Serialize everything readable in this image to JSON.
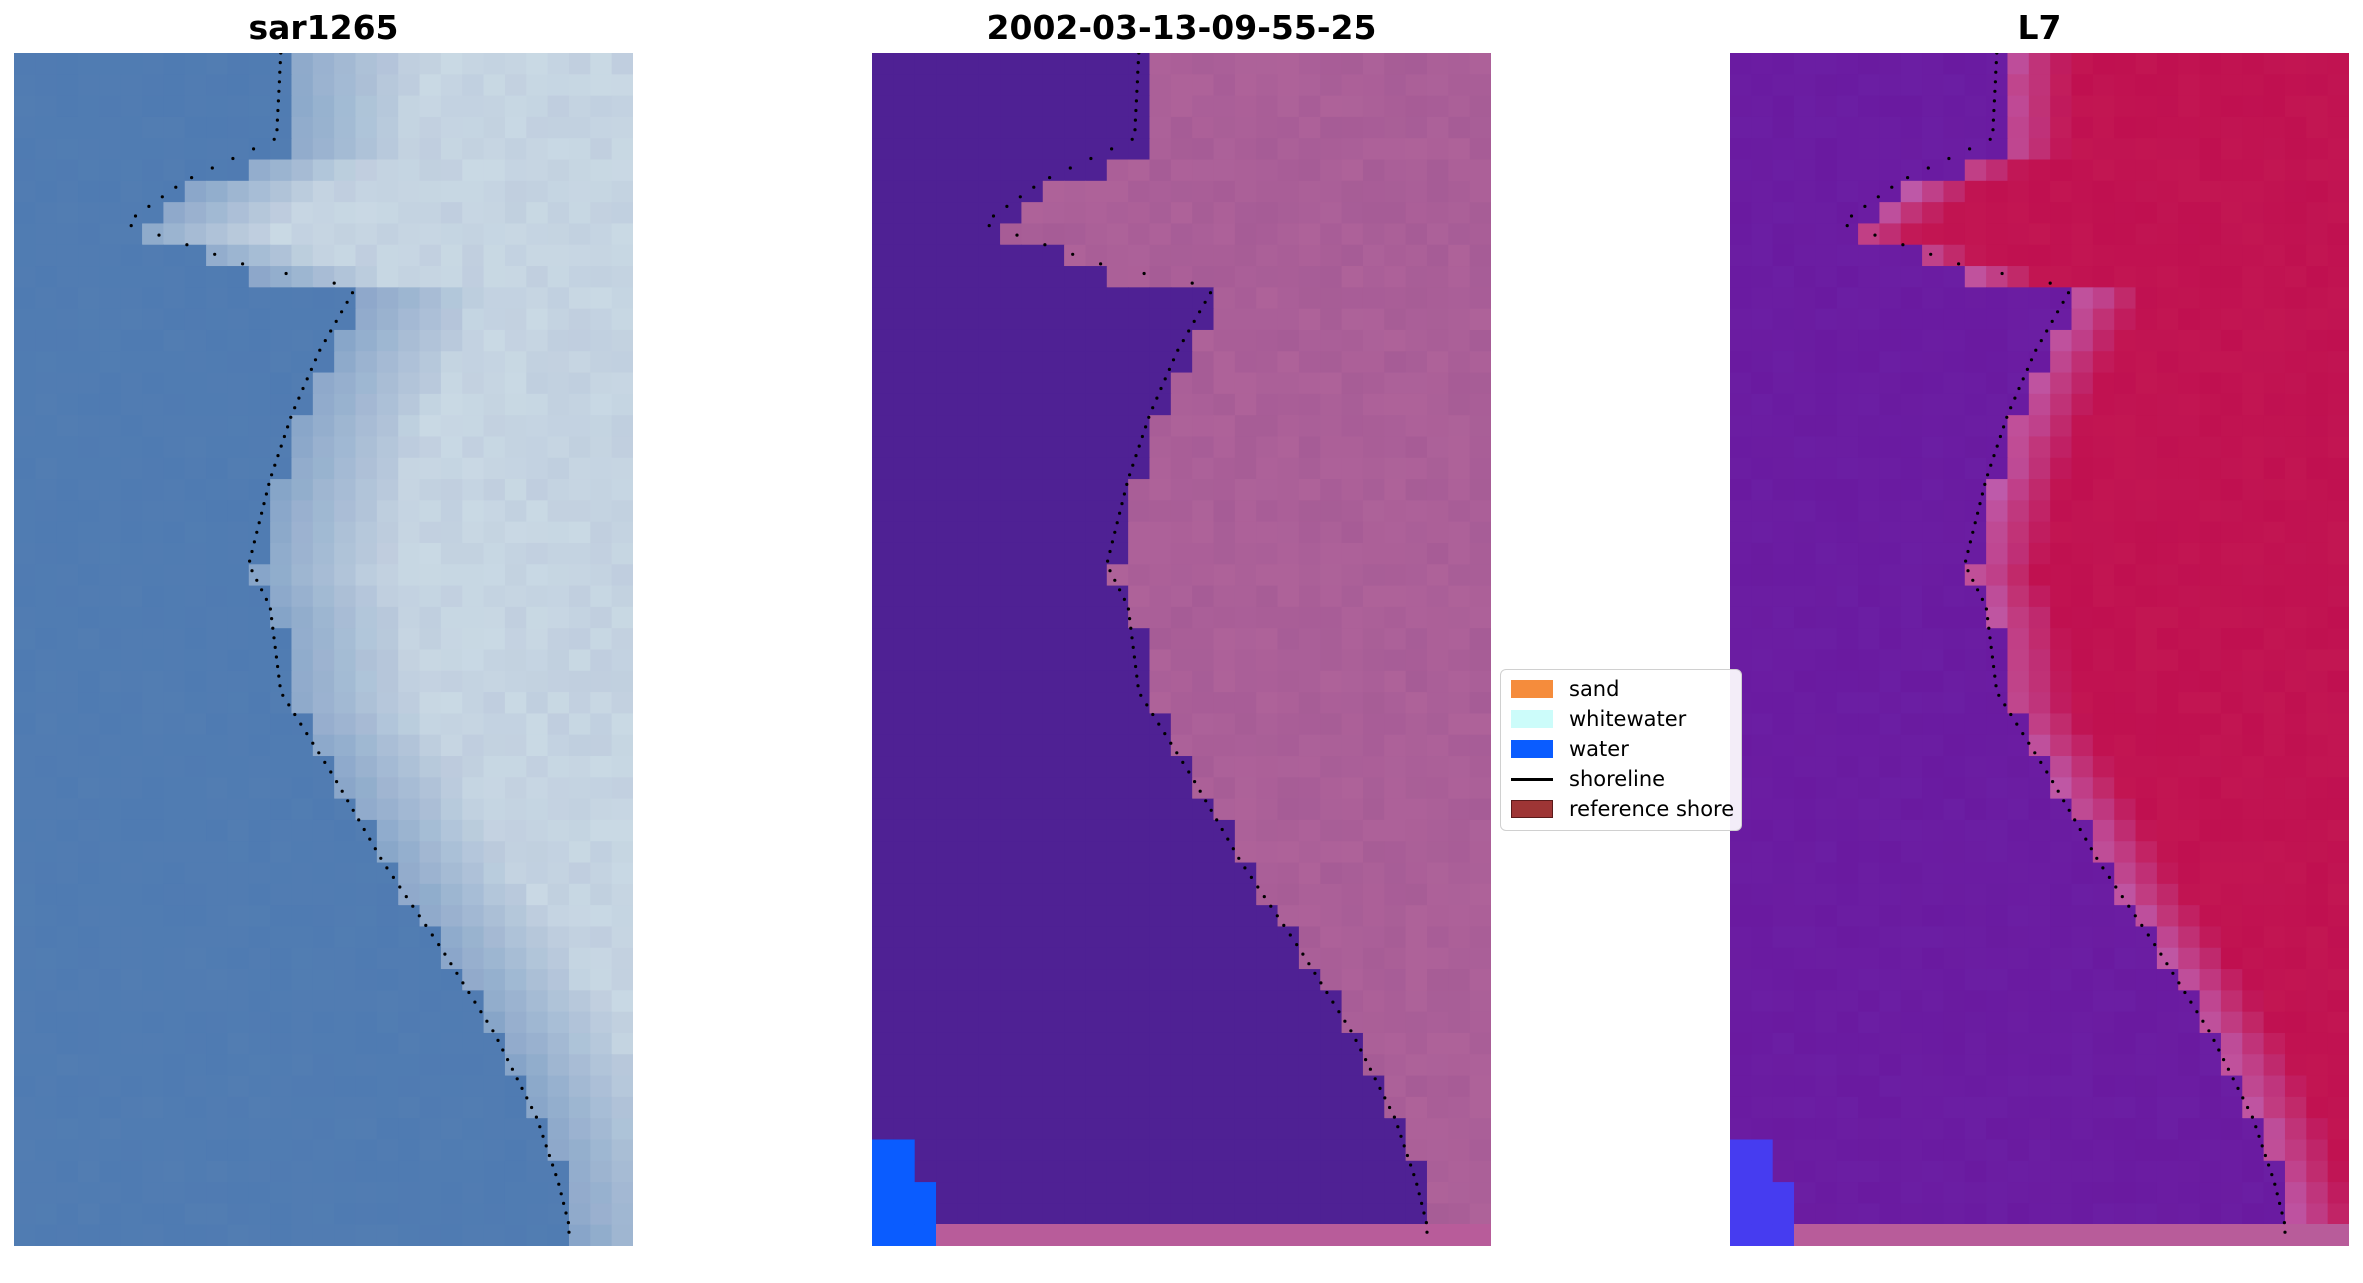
{
  "panels": [
    {
      "title": "sar1265",
      "palette": "rgb"
    },
    {
      "title": "2002-03-13-09-55-25",
      "palette": "classified"
    },
    {
      "title": "L7",
      "palette": "mndwi"
    }
  ],
  "legend": {
    "items": [
      {
        "label": "sand",
        "kind": "patch",
        "color": "#f58c3c"
      },
      {
        "label": "whitewater",
        "kind": "patch",
        "color": "#ccfcfa"
      },
      {
        "label": "water",
        "kind": "patch",
        "color": "#0a5cff"
      },
      {
        "label": "shoreline",
        "kind": "line",
        "color": "#000000"
      },
      {
        "label": "reference shore",
        "kind": "patch",
        "color": "#9e3535"
      }
    ]
  },
  "colors": {
    "water_class": "#4f2194",
    "land_pink": "#a65c96",
    "water_blue": "#0a5cff",
    "mndwi_water": "#6a1aa0",
    "mndwi_land": "#c01050",
    "rgb_water": "#4f7bb2",
    "rgb_white": "#e8f0f0",
    "reference_band": "#b85c9a",
    "shoreline": "#000000"
  }
}
